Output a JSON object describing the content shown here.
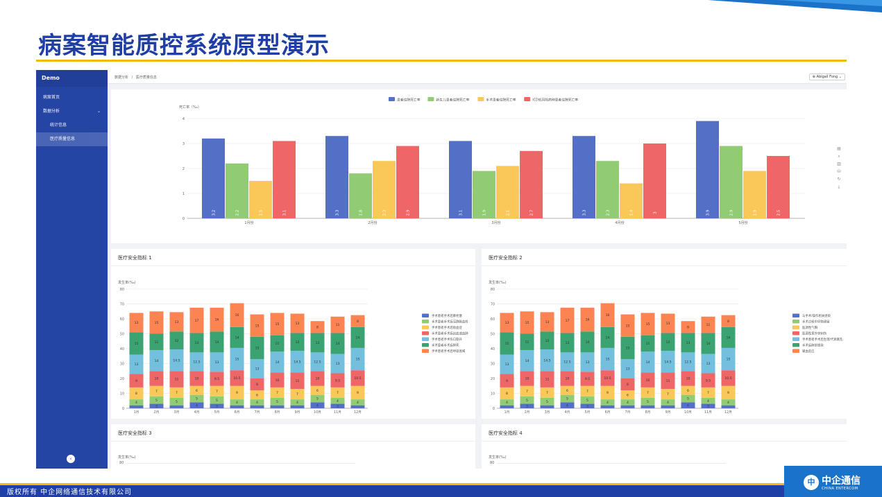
{
  "slide": {
    "title": "病案智能质控系统原型演示",
    "copyright": "版权所有  中企网络通信技术有限公司",
    "logo_name": "中企通信",
    "logo_sub": "CHINA ENTERCOM",
    "logo_mark": "中"
  },
  "sidebar": {
    "brand": "Demo",
    "items": [
      {
        "label": "病案首页"
      },
      {
        "label": "数据分析"
      },
      {
        "label": "统计信息"
      },
      {
        "label": "医疗质量信息"
      }
    ],
    "caret": "⌄",
    "collapse_icon": "‹"
  },
  "header": {
    "breadcrumb": [
      "数据分析",
      "/",
      "医疗质量信息"
    ],
    "user": "⊕ Abigail Fong ⌄"
  },
  "colors": {
    "brand_blue": "#1f3ea6",
    "accent_yellow": "#f2b90f",
    "series": [
      "#5470c6",
      "#91cc75",
      "#fac858",
      "#ee6666",
      "#73c0de",
      "#3ba272",
      "#fc8452"
    ]
  },
  "toolbox": [
    "▤",
    "⌕",
    "▥",
    "⛁",
    "↻",
    "⤓"
  ],
  "top_chart": {
    "ylabel": "死亡率（‰）",
    "chart_data": {
      "type": "bar",
      "categories": [
        "1月份",
        "2月份",
        "3月份",
        "4月份",
        "5月份"
      ],
      "series": [
        {
          "name": "患者住院死亡率",
          "values": [
            3.2,
            3.3,
            3.1,
            3.3,
            3.9
          ]
        },
        {
          "name": "新生儿患者住院死亡率",
          "values": [
            2.2,
            1.8,
            1.9,
            2.3,
            2.9
          ]
        },
        {
          "name": "手术患者住院死亡率",
          "values": [
            1.5,
            2.3,
            2.1,
            1.4,
            1.9
          ]
        },
        {
          "name": "ICD低风险病种患者住院死亡率",
          "values": [
            3.1,
            2.9,
            2.7,
            3.0,
            2.5
          ]
        }
      ],
      "ylim": [
        0,
        4
      ],
      "yticks": [
        0,
        1,
        2,
        3,
        4
      ],
      "legend": "top"
    }
  },
  "safety_charts": [
    {
      "title": "医疗安全指标 1",
      "ylabel": "发生率(‰)",
      "legend": [
        "手术患者手术后肺栓塞",
        "手术患者手术后深静脉血栓",
        "手术患者手术后败血症",
        "手术患者手术后出血或血肿",
        "手术患者手术伤口裂开",
        "手术患者手术后猝死",
        "手术患者手术后呼吸衰竭"
      ],
      "chart_data": {
        "type": "bar",
        "stacked": true,
        "categories": [
          "1月",
          "2月",
          "3月",
          "4月",
          "5月",
          "6月",
          "7月",
          "8月",
          "9月",
          "10月",
          "11月",
          "12月"
        ],
        "ylim": [
          0,
          80
        ],
        "yticks": [
          0,
          10,
          20,
          30,
          40,
          50,
          60,
          70,
          80
        ],
        "series": [
          {
            "name": "手术患者手术后肺栓塞",
            "values": [
              2,
              3,
              2,
              4,
              3,
              2,
              2,
              2,
              2,
              4,
              3,
              2
            ]
          },
          {
            "name": "手术患者手术后深静脉血栓",
            "values": [
              4,
              5,
              5,
              5,
              5,
              4,
              4,
              5,
              4,
              5,
              4,
              4
            ]
          },
          {
            "name": "手术患者手术后败血症",
            "values": [
              8,
              7,
              7,
              6,
              7,
              9,
              6,
              7,
              7,
              6,
              7,
              9
            ]
          },
          {
            "name": "手术患者手术后出血或血肿",
            "values": [
              9,
              10,
              11,
              10,
              9.5,
              10.5,
              8,
              10,
              11,
              10,
              9.5,
              10.5
            ]
          },
          {
            "name": "手术患者手术伤口裂开",
            "values": [
              13,
              14,
              14.5,
              12.5,
              13,
              15,
              13,
              14,
              14.5,
              12.5,
              13,
              15
            ]
          },
          {
            "name": "手术患者手术后猝死",
            "values": [
              15,
              11,
              12,
              13,
              14,
              14,
              15,
              11,
              12,
              13,
              14,
              14
            ]
          },
          {
            "name": "手术患者手术后呼吸衰竭",
            "values": [
              13,
              15,
              13,
              17,
              16,
              16,
              15,
              15,
              13,
              8,
              11,
              8
            ]
          }
        ]
      }
    },
    {
      "title": "医疗安全指标 2",
      "ylabel": "发生率(‰)",
      "legend": [
        "与手术/操作相关感染",
        "手术过程中异物遗留",
        "医源性气胸",
        "医源性意外穿刺伤",
        "手术患者手术后生理/代谢紊乱",
        "手术后肺部感染",
        "输血反应"
      ],
      "chart_data": {
        "type": "bar",
        "stacked": true,
        "categories": [
          "1月",
          "2月",
          "3月",
          "4月",
          "5月",
          "6月",
          "7月",
          "8月",
          "9月",
          "10月",
          "11月",
          "12月"
        ],
        "ylim": [
          0,
          80
        ],
        "yticks": [
          0,
          10,
          20,
          30,
          40,
          50,
          60,
          70,
          80
        ],
        "series": [
          {
            "name": "与手术/操作相关感染",
            "values": [
              2,
              3,
              2,
              4,
              3,
              2,
              2,
              2,
              2,
              4,
              3,
              2
            ]
          },
          {
            "name": "手术过程中异物遗留",
            "values": [
              4,
              5,
              5,
              5,
              5,
              4,
              4,
              5,
              4,
              5,
              4,
              4
            ]
          },
          {
            "name": "医源性气胸",
            "values": [
              8,
              7,
              7,
              6,
              7,
              9,
              6,
              7,
              7,
              6,
              7,
              9
            ]
          },
          {
            "name": "医源性意外穿刺伤",
            "values": [
              9,
              10,
              11,
              10,
              9.5,
              10.5,
              8,
              10,
              11,
              10,
              9.5,
              10.5
            ]
          },
          {
            "name": "手术患者手术后生理/代谢紊乱",
            "values": [
              13,
              14,
              14.5,
              12.5,
              13,
              15,
              13,
              14,
              14.5,
              12.5,
              13,
              15
            ]
          },
          {
            "name": "手术后肺部感染",
            "values": [
              15,
              11,
              12,
              13,
              14,
              14,
              15,
              11,
              12,
              13,
              14,
              14
            ]
          },
          {
            "name": "输血反应",
            "values": [
              13,
              15,
              13,
              17,
              16,
              16,
              15,
              15,
              13,
              8,
              11,
              8
            ]
          }
        ]
      }
    },
    {
      "title": "医疗安全指标 3",
      "ylabel": "发生率(‰)",
      "first_tick": "80"
    },
    {
      "title": "医疗安全指标 4",
      "ylabel": "发生率(‰)",
      "first_tick": "80"
    }
  ]
}
